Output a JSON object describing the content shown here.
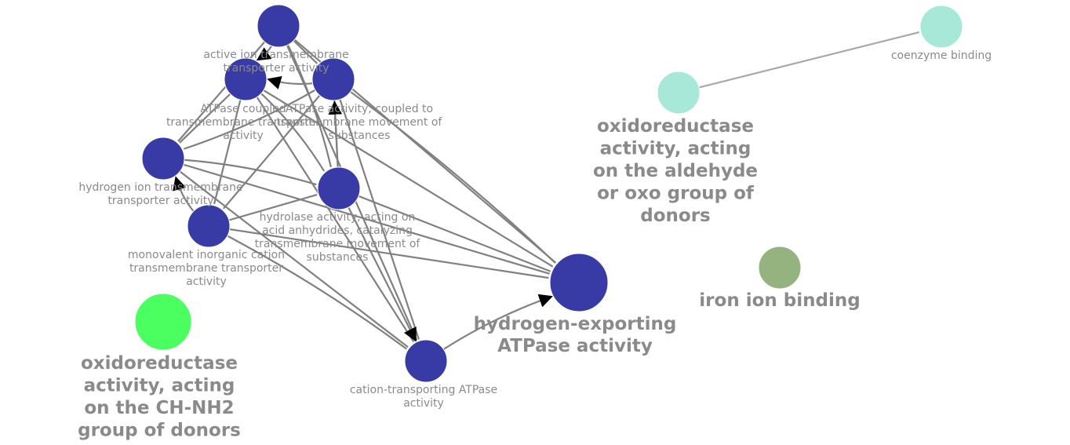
{
  "colors": {
    "blue_cluster": "#383ba6",
    "blue_label": "#1c1f8c",
    "teal": "#a8e8d8",
    "teal_label": "#8fdcc8",
    "green_light": "#4cff60",
    "green_light_label": "#3ef054",
    "olive": "#94b37e",
    "olive_label": "#83a76a",
    "edge": "#808080",
    "label_small": "#8a8a8a"
  },
  "nodes": {
    "active_ion": {
      "label": [
        "active ion transmembrane",
        "transporter activity"
      ]
    },
    "atpase_coupled": {
      "label": [
        "ATPase coupled",
        "transmembrane transporter",
        "activity"
      ]
    },
    "atpase_activity_coupled": {
      "label": [
        "ATPase activity, coupled to",
        "transmembrane movement of",
        "substances"
      ]
    },
    "hydrogen_ion": {
      "label": [
        "hydrogen ion transmembrane",
        "transporter activity"
      ]
    },
    "hydrolase": {
      "label": [
        "hydrolase activity, acting on",
        "acid anhydrides, catalyzing",
        "transmembrane movement of",
        "substances"
      ]
    },
    "monovalent": {
      "label": [
        "monovalent inorganic cation",
        "transmembrane transporter",
        "activity"
      ]
    },
    "cation_transporting": {
      "label": [
        "cation-transporting ATPase",
        "activity"
      ]
    },
    "hydrogen_exporting": {
      "label": [
        "hydrogen-exporting",
        "ATPase activity"
      ]
    },
    "coenzyme_binding": {
      "label": [
        "coenzyme binding"
      ]
    },
    "oxidoreductase_aldehyde": {
      "label": [
        "oxidoreductase",
        "activity, acting",
        "on the aldehyde",
        "or oxo group of",
        "donors"
      ]
    },
    "iron_ion_binding": {
      "label": [
        "iron ion binding"
      ]
    },
    "oxidoreductase_ch_nh2": {
      "label": [
        "oxidoreductase",
        "activity, acting",
        "on the CH-NH2",
        "group of donors"
      ]
    },
    "top_node": {
      "label": []
    }
  }
}
